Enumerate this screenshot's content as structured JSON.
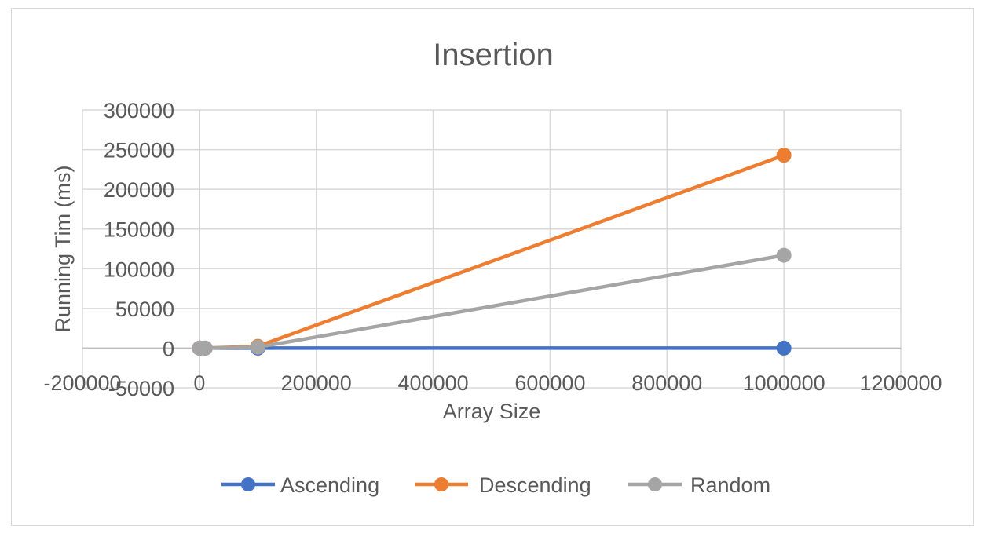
{
  "chart_data": {
    "type": "scatter",
    "title": "Insertion",
    "xlabel": "Array Size",
    "ylabel": "Running Tim (ms)",
    "xlim": [
      -200000,
      1200000
    ],
    "ylim": [
      -50000,
      300000
    ],
    "x_ticks": [
      -200000,
      0,
      200000,
      400000,
      600000,
      800000,
      1000000,
      1200000
    ],
    "y_ticks": [
      -50000,
      0,
      50000,
      100000,
      150000,
      200000,
      250000,
      300000
    ],
    "x_tick_labels": [
      "-200000",
      "0",
      "200000",
      "400000",
      "600000",
      "800000",
      "1000000",
      "1200000"
    ],
    "y_tick_labels": [
      "-50000",
      "0",
      "50000",
      "100000",
      "150000",
      "200000",
      "250000",
      "300000"
    ],
    "grid": true,
    "legend_position": "bottom",
    "series": [
      {
        "name": "Ascending",
        "color": "#4472c4",
        "x": [
          100,
          1000,
          10000,
          100000,
          1000000
        ],
        "y": [
          0,
          0,
          0,
          0,
          0
        ]
      },
      {
        "name": "Descending",
        "color": "#ed7d31",
        "x": [
          100,
          1000,
          10000,
          100000,
          1000000
        ],
        "y": [
          0,
          0,
          0,
          2300,
          243000
        ]
      },
      {
        "name": "Random",
        "color": "#a5a5a5",
        "x": [
          100,
          1000,
          10000,
          100000,
          1000000
        ],
        "y": [
          0,
          0,
          0,
          1200,
          117000
        ]
      }
    ]
  }
}
